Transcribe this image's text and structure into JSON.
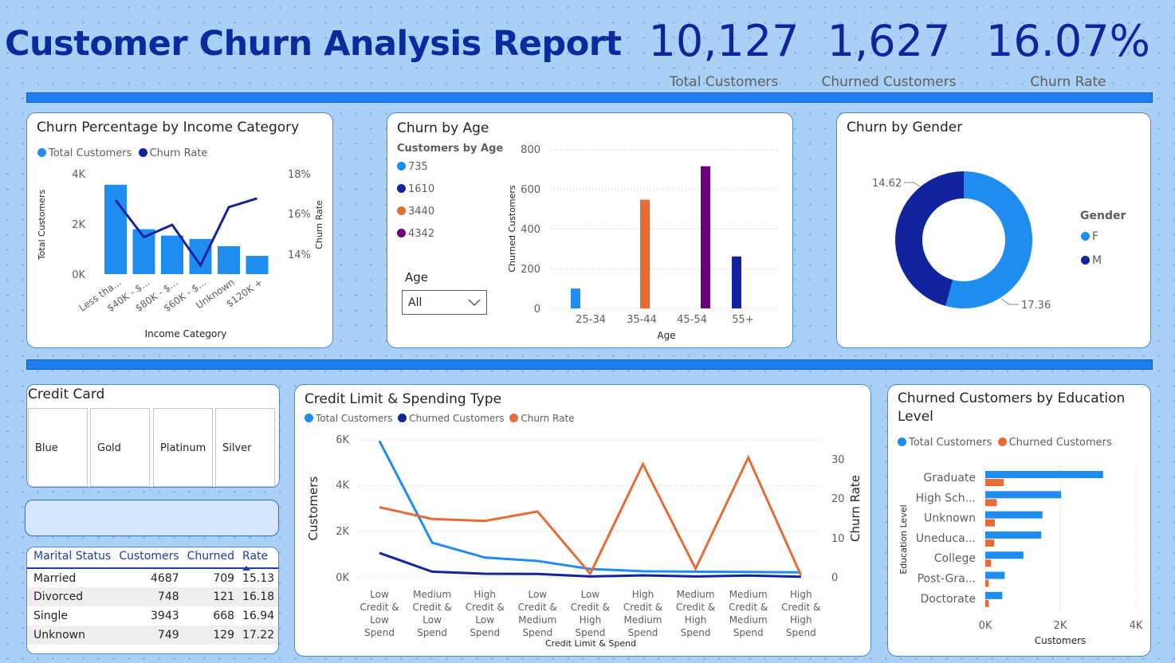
{
  "report": {
    "title": "Customer Churn Analysis Report",
    "kpis": [
      {
        "value": "10,127",
        "label": "Total Customers"
      },
      {
        "value": "1,627",
        "label": "Churned Customers"
      },
      {
        "value": "16.07%",
        "label": "Churn Rate"
      }
    ]
  },
  "colors": {
    "accent_light": "#1f8cf0",
    "accent_dark": "#12239e",
    "orange": "#e66c37",
    "purple": "#6b007b",
    "title_blue": "#0c2a9e"
  },
  "income_card": {
    "title": "Churn Percentage by Income Category",
    "legend": [
      "Total Customers",
      "Churn Rate"
    ],
    "y_ticks": [
      "4K",
      "2K",
      "0K"
    ],
    "y2_ticks": [
      "18%",
      "16%",
      "14%"
    ],
    "ylabel": "Total Customers",
    "y2label": "Churn Rate",
    "xlabel": "Income Category",
    "x_ticks": [
      "Less tha...",
      "$40K - $...",
      "$80K - $...",
      "$60K - $...",
      "Unknown",
      "$120K +"
    ]
  },
  "age_card": {
    "title": "Churn by Age",
    "legend_title": "Customers by Age",
    "legend_items": [
      "735",
      "1610",
      "3440",
      "4342"
    ],
    "slicer_label": "Age",
    "slicer_value": "All",
    "y_ticks": [
      "800",
      "600",
      "400",
      "200",
      "0"
    ],
    "ylabel": "Churned Customers",
    "xlabel": "Age",
    "x_ticks": [
      "25-34",
      "35-44",
      "45-54",
      "55+"
    ]
  },
  "gender_card": {
    "title": "Churn by Gender",
    "legend_title": "Gender",
    "legend_items": [
      "F",
      "M"
    ],
    "labels": [
      "14.62",
      "17.36"
    ]
  },
  "credit_card": {
    "title": "Credit Card",
    "options": [
      "Blue",
      "Gold",
      "Platinum",
      "Silver"
    ]
  },
  "marital_table": {
    "headers": [
      "Marital Status",
      "Customers",
      "Churned",
      "Rate"
    ],
    "rows": [
      [
        "Married",
        "4687",
        "709",
        "15.13"
      ],
      [
        "Divorced",
        "748",
        "121",
        "16.18"
      ],
      [
        "Single",
        "3943",
        "668",
        "16.94"
      ],
      [
        "Unknown",
        "749",
        "129",
        "17.22"
      ]
    ]
  },
  "spend_card": {
    "title": "Credit Limit & Spending Type",
    "legend": [
      "Total Customers",
      "Churned Customers",
      "Churn Rate"
    ],
    "y_ticks": [
      "6K",
      "4K",
      "2K",
      "0K"
    ],
    "y2_ticks": [
      "30",
      "20",
      "10",
      "0"
    ],
    "ylabel": "Customers",
    "y2label": "Churn Rate",
    "xlabel": "Credit Limit & Spend",
    "x_ticks": [
      [
        "Low",
        "Credit &",
        "Low",
        "Spend"
      ],
      [
        "Medium",
        "Credit &",
        "Low",
        "Spend"
      ],
      [
        "High",
        "Credit &",
        "Low",
        "Spend"
      ],
      [
        "Low",
        "Credit &",
        "Medium",
        "Spend"
      ],
      [
        "Low",
        "Credit &",
        "High",
        "Spend"
      ],
      [
        "High",
        "Credit &",
        "Medium",
        "Spend"
      ],
      [
        "Medium",
        "Credit &",
        "High",
        "Spend"
      ],
      [
        "Medium",
        "Credit &",
        "Medium",
        "Spend"
      ],
      [
        "High",
        "Credit &",
        "High",
        "Spend"
      ]
    ]
  },
  "education_card": {
    "title_line1": "Churned Customers by Education",
    "title_line2": "Level",
    "legend": [
      "Total Customers",
      "Churned Customers"
    ],
    "ylabel": "Education Level",
    "xlabel": "Customers",
    "x_ticks": [
      "0K",
      "2K",
      "4K"
    ],
    "categories": [
      "Graduate",
      "High Sch...",
      "Unknown",
      "Uneduca...",
      "College",
      "Post-Gra...",
      "Doctorate"
    ]
  },
  "chart_data": [
    {
      "type": "bar",
      "title": "Churn Percentage by Income Category",
      "categories": [
        "Less tha...",
        "$40K - $...",
        "$80K - $...",
        "$60K - $...",
        "Unknown",
        "$120K +"
      ],
      "series": [
        {
          "name": "Total Customers",
          "values": [
            3561,
            1790,
            1535,
            1402,
            1112,
            727
          ]
        },
        {
          "name": "Churn Rate",
          "values": [
            17.2,
            15.1,
            15.8,
            13.5,
            16.8,
            17.3
          ]
        }
      ],
      "xlabel": "Income Category",
      "ylabel": "Total Customers",
      "y2label": "Churn Rate",
      "ylim": [
        0,
        4000
      ],
      "y2lim": [
        13,
        18.7
      ]
    },
    {
      "type": "bar",
      "title": "Churn by Age",
      "categories": [
        "25-34",
        "35-44",
        "45-54",
        "55+"
      ],
      "values": [
        100,
        548,
        717,
        262
      ],
      "xlabel": "Age",
      "ylabel": "Churned Customers",
      "ylim": [
        0,
        800
      ]
    },
    {
      "type": "pie",
      "title": "Churn by Gender",
      "categories": [
        "F",
        "M"
      ],
      "values": [
        17.36,
        14.62
      ]
    },
    {
      "type": "line",
      "title": "Credit Limit & Spending Type",
      "categories": [
        "Low Credit & Low Spend",
        "Medium Credit & Low Spend",
        "High Credit & Low Spend",
        "Low Credit & Medium Spend",
        "Low Credit & High Spend",
        "High Credit & Medium Spend",
        "Medium Credit & High Spend",
        "Medium Credit & Medium Spend",
        "High Credit & High Spend"
      ],
      "series": [
        {
          "name": "Total Customers",
          "values": [
            5950,
            1500,
            850,
            700,
            350,
            250,
            230,
            220,
            200
          ]
        },
        {
          "name": "Churned Customers",
          "values": [
            1050,
            230,
            140,
            130,
            20,
            70,
            20,
            60,
            10
          ]
        },
        {
          "name": "Churn Rate",
          "values": [
            17.8,
            14.8,
            14.3,
            16.7,
            0.8,
            28.8,
            2.1,
            30.5,
            0.4
          ]
        }
      ],
      "xlabel": "Credit Limit & Spend",
      "ylabel": "Customers",
      "y2label": "Churn Rate",
      "ylim": [
        0,
        6000
      ],
      "y2lim": [
        0,
        35
      ]
    },
    {
      "type": "bar",
      "title": "Churned Customers by Education Level",
      "categories": [
        "Graduate",
        "High Sch...",
        "Unknown",
        "Uneduca...",
        "College",
        "Post-Gra...",
        "Doctorate"
      ],
      "series": [
        {
          "name": "Total Customers",
          "values": [
            3128,
            2013,
            1519,
            1487,
            1013,
            516,
            451
          ]
        },
        {
          "name": "Churned Customers",
          "values": [
            487,
            306,
            256,
            237,
            154,
            92,
            95
          ]
        }
      ],
      "xlabel": "Customers",
      "ylabel": "Education Level",
      "xlim": [
        0,
        4000
      ]
    }
  ]
}
